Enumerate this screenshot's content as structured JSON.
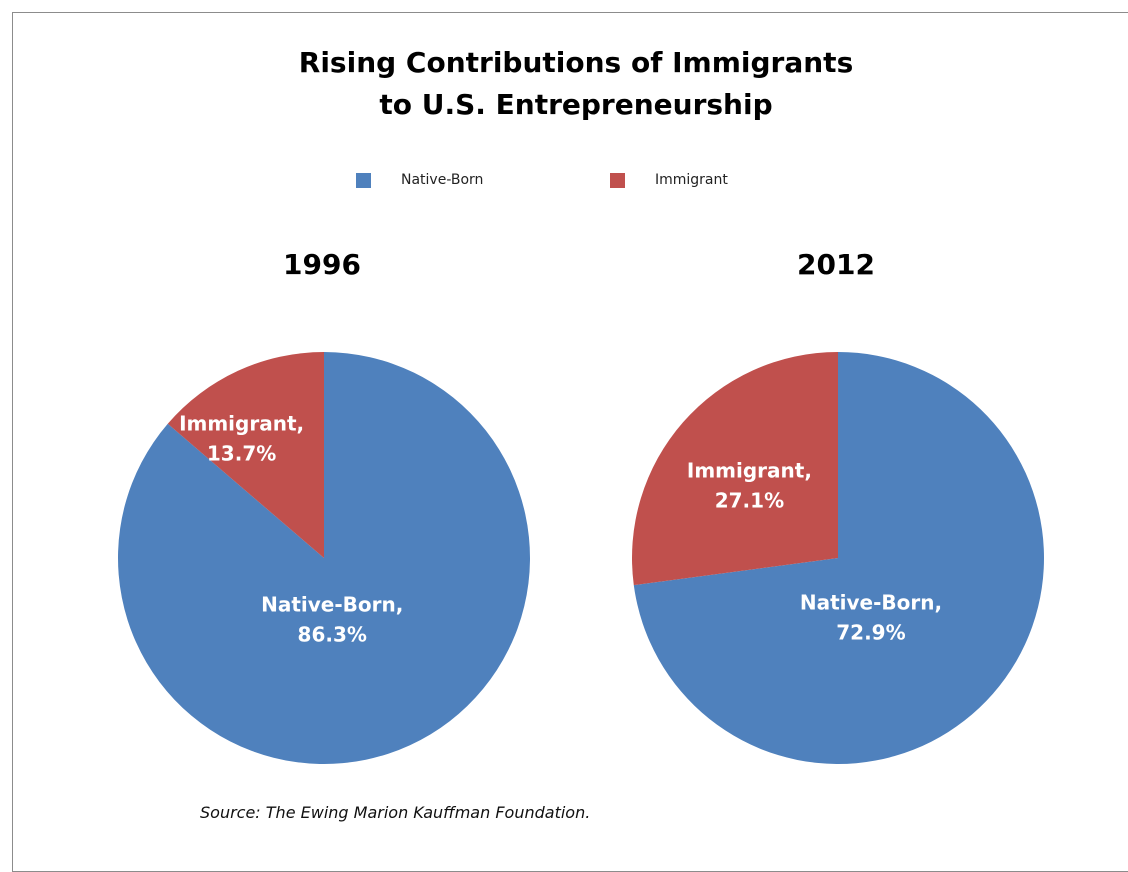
{
  "title_lines": [
    "Rising Contributions  of Immigrants",
    "to U.S. Entrepreneurship"
  ],
  "legend": [
    {
      "label": "Native-Born",
      "color": "#4f81bd"
    },
    {
      "label": "Immigrant",
      "color": "#c0504d"
    }
  ],
  "source": "Source: The Ewing Marion Kauffman Foundation.",
  "chart_data": [
    {
      "type": "pie",
      "title": "1996",
      "categories": [
        "Native-Born",
        "Immigrant"
      ],
      "values": [
        86.3,
        13.7
      ],
      "colors": [
        "#4f81bd",
        "#c0504d"
      ],
      "data_labels": [
        [
          "Native-Born,",
          "86.3%"
        ],
        [
          "Immigrant,",
          "13.7%"
        ]
      ]
    },
    {
      "type": "pie",
      "title": "2012",
      "categories": [
        "Native-Born",
        "Immigrant"
      ],
      "values": [
        72.9,
        27.1
      ],
      "colors": [
        "#4f81bd",
        "#c0504d"
      ],
      "data_labels": [
        [
          "Native-Born,",
          "72.9%"
        ],
        [
          "Immigrant,",
          "27.1%"
        ]
      ]
    }
  ]
}
